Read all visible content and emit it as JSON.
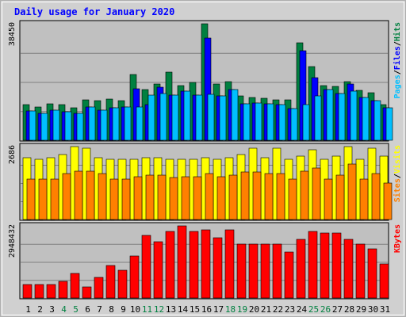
{
  "title": "Daily usage for January 2020",
  "chart_data": {
    "type": "bar",
    "x": [
      "1",
      "2",
      "3",
      "4",
      "5",
      "6",
      "7",
      "8",
      "9",
      "10",
      "11",
      "12",
      "13",
      "14",
      "15",
      "16",
      "17",
      "18",
      "19",
      "20",
      "21",
      "22",
      "23",
      "24",
      "25",
      "26",
      "27",
      "28",
      "29",
      "30",
      "31"
    ],
    "weekend_days": [
      "4",
      "5",
      "11",
      "12",
      "18",
      "19",
      "25",
      "26"
    ],
    "panels": [
      {
        "id": "hits-files-pages",
        "ymax_label": "38450",
        "ylim": [
          0,
          38450
        ],
        "right_labels": [
          "Pages",
          "Files",
          "Hits"
        ],
        "series": [
          {
            "name": "Hits",
            "color": "#008040",
            "values": [
              11750,
              11100,
              12050,
              11900,
              10800,
              13450,
              13100,
              13650,
              13150,
              21750,
              16750,
              18550,
              22550,
              18000,
              19050,
              38450,
              18700,
              19400,
              14600,
              14050,
              13950,
              13450,
              13300,
              32300,
              24300,
              18000,
              17700,
              19400,
              16450,
              15700,
              11900
            ]
          },
          {
            "name": "Files",
            "color": "#0000ff",
            "values": [
              9650,
              9000,
              10050,
              9400,
              8800,
              11050,
              9900,
              10850,
              11000,
              16900,
              11900,
              17650,
              14850,
              16250,
              14800,
              33650,
              14650,
              16700,
              12150,
              12250,
              11950,
              11800,
              10500,
              29500,
              20650,
              16700,
              15400,
              18550,
              14100,
              13150,
              10600
            ]
          },
          {
            "name": "Pages",
            "color": "#00bfff",
            "values": [
              9650,
              9000,
              10050,
              9400,
              8800,
              11050,
              9900,
              10850,
              11000,
              11050,
              14850,
              15400,
              14850,
              16250,
              14800,
              15100,
              14650,
              16700,
              12150,
              12250,
              11950,
              11800,
              10500,
              11800,
              14700,
              16700,
              15400,
              16200,
              14100,
              13150,
              10600
            ]
          }
        ]
      },
      {
        "id": "visits-sites",
        "ymax_label": "2686",
        "ylim": [
          0,
          2686
        ],
        "right_labels": [
          "Sites",
          "Visits"
        ],
        "series": [
          {
            "name": "Visits",
            "color": "#ffff00",
            "values": [
              2286,
              2227,
              2286,
              2405,
              2686,
              2618,
              2286,
              2227,
              2227,
              2227,
              2286,
              2286,
              2227,
              2227,
              2227,
              2286,
              2227,
              2286,
              2405,
              2618,
              2286,
              2618,
              2227,
              2346,
              2569,
              2227,
              2346,
              2686,
              2227,
              2618,
              2346
            ]
          },
          {
            "name": "Sites",
            "color": "#ff8000",
            "values": [
              1483,
              1483,
              1483,
              1693,
              1795,
              1795,
              1693,
              1483,
              1483,
              1586,
              1640,
              1640,
              1547,
              1586,
              1586,
              1693,
              1586,
              1640,
              1745,
              1745,
              1693,
              1693,
              1483,
              1795,
              1884,
              1483,
              1640,
              2048,
              1483,
              1693,
              1347
            ]
          }
        ]
      },
      {
        "id": "kbytes",
        "ymax_label": "2948432",
        "ylim": [
          0,
          2948432
        ],
        "right_labels": [
          "KBytes"
        ],
        "series": [
          {
            "name": "KBytes",
            "color": "#ff0000",
            "values": [
              549000,
              549000,
              549000,
              670000,
              1000000,
              463000,
              847000,
              1334000,
              1144000,
              1719000,
              2564000,
              2290000,
              2722000,
              2948432,
              2722000,
              2780000,
              2470000,
              2780000,
              2200000,
              2200000,
              2200000,
              2200000,
              1874000,
              2390000,
              2722000,
              2648000,
              2648000,
              2390000,
              2210000,
              2010000,
              1400000
            ]
          }
        ]
      }
    ],
    "grid": true,
    "legend": "right"
  }
}
